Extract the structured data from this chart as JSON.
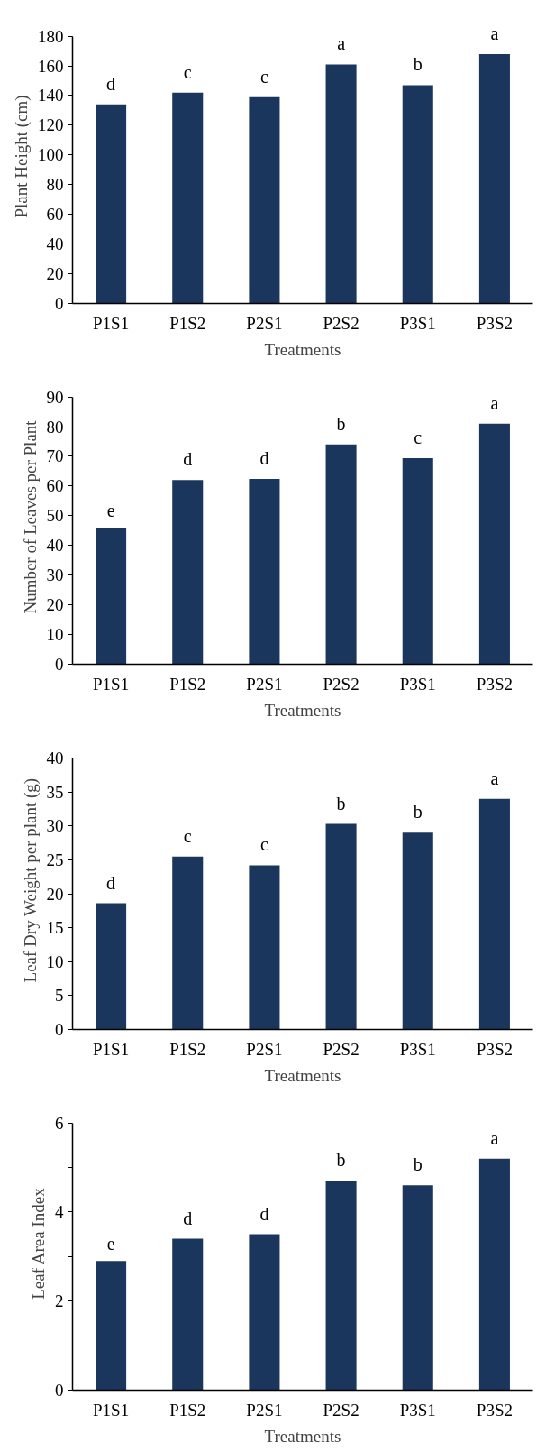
{
  "chart_data": [
    {
      "type": "bar",
      "categories": [
        "P1S1",
        "P1S2",
        "P2S1",
        "P2S2",
        "P3S1",
        "P3S2"
      ],
      "values": [
        134,
        142,
        139,
        161,
        147,
        168
      ],
      "color": "#1b365d",
      "xlabel": "Treatments",
      "ylabel": "Plant Height (cm)",
      "ylim": [
        0,
        180
      ],
      "yticks": [
        0,
        20,
        40,
        60,
        80,
        100,
        120,
        140,
        160,
        180
      ],
      "grid": false,
      "annotations": [
        {
          "text": "d",
          "x": "P1S1",
          "y": 134
        },
        {
          "text": "c",
          "x": "P1S2",
          "y": 142
        },
        {
          "text": "c",
          "x": "P2S1",
          "y": 139
        },
        {
          "text": "a",
          "x": "P2S2",
          "y": 161
        },
        {
          "text": "b",
          "x": "P3S1",
          "y": 147
        },
        {
          "text": "a",
          "x": "P3S2",
          "y": 168
        }
      ]
    },
    {
      "type": "bar",
      "categories": [
        "P1S1",
        "P1S2",
        "P2S1",
        "P2S2",
        "P3S1",
        "P3S2"
      ],
      "values": [
        46,
        62,
        62.4,
        74,
        69.4,
        81
      ],
      "color": "#1b365d",
      "xlabel": "Treatments",
      "ylabel": "Number of Leaves per Plant",
      "ylim": [
        0,
        90
      ],
      "yticks": [
        0,
        10,
        20,
        30,
        40,
        50,
        60,
        70,
        80,
        90
      ],
      "grid": false,
      "annotations": [
        {
          "text": "e",
          "x": "P1S1",
          "y": 46
        },
        {
          "text": "d",
          "x": "P1S2",
          "y": 62
        },
        {
          "text": "d",
          "x": "P2S1",
          "y": 62.4
        },
        {
          "text": "b",
          "x": "P2S2",
          "y": 74
        },
        {
          "text": "c",
          "x": "P3S1",
          "y": 69.4
        },
        {
          "text": "a",
          "x": "P3S2",
          "y": 81
        }
      ]
    },
    {
      "type": "bar",
      "categories": [
        "P1S1",
        "P1S2",
        "P2S1",
        "P2S2",
        "P3S1",
        "P3S2"
      ],
      "values": [
        18.6,
        25.5,
        24.2,
        30.3,
        29,
        34
      ],
      "color": "#1b365d",
      "xlabel": "Treatments",
      "ylabel": "Leaf Dry Weight per plant (g)",
      "ylim": [
        0,
        40
      ],
      "yticks": [
        0,
        5,
        10,
        15,
        20,
        25,
        30,
        35,
        40
      ],
      "grid": false,
      "annotations": [
        {
          "text": "d",
          "x": "P1S1",
          "y": 18.6
        },
        {
          "text": "c",
          "x": "P1S2",
          "y": 25.5
        },
        {
          "text": "c",
          "x": "P2S1",
          "y": 24.2
        },
        {
          "text": "b",
          "x": "P2S2",
          "y": 30.3
        },
        {
          "text": "b",
          "x": "P3S1",
          "y": 29
        },
        {
          "text": "a",
          "x": "P3S2",
          "y": 34
        }
      ]
    },
    {
      "type": "bar",
      "categories": [
        "P1S1",
        "P1S2",
        "P2S1",
        "P2S2",
        "P3S1",
        "P3S2"
      ],
      "values": [
        2.9,
        3.4,
        3.5,
        4.7,
        4.6,
        5.2
      ],
      "color": "#1b365d",
      "xlabel": "Treatments",
      "ylabel": "Leaf Area Index",
      "ylim": [
        0,
        6
      ],
      "yticks": [
        0,
        {
          "value": 1,
          "label": null
        },
        2,
        {
          "value": 3,
          "label": null
        },
        4,
        {
          "value": 5,
          "label": null
        },
        6
      ],
      "grid": false,
      "annotations": [
        {
          "text": "e",
          "x": "P1S1",
          "y": 2.9
        },
        {
          "text": "d",
          "x": "P1S2",
          "y": 3.4
        },
        {
          "text": "d",
          "x": "P2S1",
          "y": 3.5
        },
        {
          "text": "b",
          "x": "P2S2",
          "y": 4.7
        },
        {
          "text": "b",
          "x": "P3S1",
          "y": 4.6
        },
        {
          "text": "a",
          "x": "P3S2",
          "y": 5.2
        }
      ]
    }
  ]
}
